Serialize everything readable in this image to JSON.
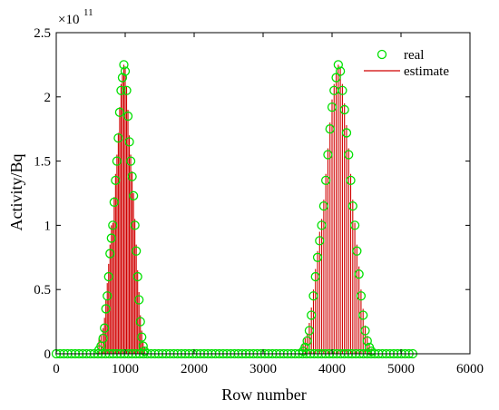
{
  "chart_data": {
    "type": "scatter",
    "title": "",
    "xlabel": "Row number",
    "ylabel": "Activity/Bq",
    "xlim": [
      0,
      6000
    ],
    "ylim": [
      0,
      2.5
    ],
    "y_exponent_base": "×10",
    "y_exponent_power": "11",
    "x_ticks": [
      0,
      1000,
      2000,
      3000,
      4000,
      5000,
      6000
    ],
    "y_ticks": [
      0,
      0.5,
      1,
      1.5,
      2,
      2.5
    ],
    "x_tick_labels": [
      "0",
      "1000",
      "2000",
      "3000",
      "4000",
      "5000",
      "6000"
    ],
    "y_tick_labels": [
      "0",
      "0.5",
      "1",
      "1.5",
      "2",
      "2.5"
    ],
    "grid": false,
    "legend_position": "top-right",
    "colors": {
      "real": "#00e000",
      "estimate": "#d00000",
      "axis": "#000000"
    },
    "series": [
      {
        "name": "real",
        "style": "circle-markers",
        "color": "#00e000",
        "x": [
          620,
          650,
          680,
          700,
          720,
          740,
          760,
          780,
          800,
          820,
          840,
          860,
          880,
          900,
          920,
          940,
          960,
          980,
          1000,
          1020,
          1040,
          1060,
          1080,
          1100,
          1120,
          1140,
          1160,
          1180,
          1200,
          1220,
          1240,
          1260,
          1280,
          3580,
          3610,
          3640,
          3670,
          3700,
          3730,
          3760,
          3790,
          3820,
          3850,
          3880,
          3910,
          3940,
          3970,
          4000,
          4030,
          4060,
          4090,
          4120,
          4150,
          4180,
          4210,
          4240,
          4270,
          4300,
          4330,
          4360,
          4390,
          4420,
          4450,
          4480,
          4510,
          4540,
          4570
        ],
        "y": [
          0.03,
          0.06,
          0.12,
          0.2,
          0.35,
          0.45,
          0.6,
          0.78,
          0.9,
          1.0,
          1.18,
          1.35,
          1.5,
          1.68,
          1.88,
          2.05,
          2.15,
          2.25,
          2.2,
          2.05,
          1.85,
          1.65,
          1.5,
          1.38,
          1.23,
          1.0,
          0.8,
          0.6,
          0.42,
          0.25,
          0.13,
          0.06,
          0.02,
          0.02,
          0.05,
          0.1,
          0.18,
          0.3,
          0.45,
          0.6,
          0.75,
          0.88,
          1.0,
          1.15,
          1.35,
          1.55,
          1.75,
          1.92,
          2.05,
          2.15,
          2.25,
          2.2,
          2.05,
          1.9,
          1.72,
          1.55,
          1.35,
          1.15,
          1.0,
          0.8,
          0.62,
          0.45,
          0.3,
          0.18,
          0.1,
          0.05,
          0.02
        ]
      },
      {
        "name": "estimate",
        "style": "stems",
        "color": "#d00000",
        "x": [
          620,
          650,
          680,
          700,
          720,
          740,
          760,
          780,
          800,
          820,
          840,
          860,
          880,
          900,
          920,
          940,
          960,
          980,
          1000,
          1020,
          1040,
          1060,
          1080,
          1100,
          1120,
          1140,
          1160,
          1180,
          1200,
          1220,
          1240,
          1260,
          1280,
          3580,
          3610,
          3640,
          3670,
          3700,
          3730,
          3760,
          3790,
          3820,
          3850,
          3880,
          3910,
          3940,
          3970,
          4000,
          4030,
          4060,
          4090,
          4120,
          4150,
          4180,
          4210,
          4240,
          4270,
          4300,
          4330,
          4360,
          4390,
          4420,
          4450,
          4480,
          4510,
          4540,
          4570
        ],
        "y": [
          0.12,
          0.15,
          0.2,
          0.28,
          0.42,
          0.55,
          0.7,
          0.85,
          1.0,
          1.02,
          1.22,
          1.4,
          1.55,
          1.72,
          1.92,
          2.1,
          2.18,
          2.25,
          2.22,
          2.08,
          1.9,
          1.7,
          1.55,
          1.42,
          1.25,
          1.05,
          0.85,
          0.65,
          0.48,
          0.3,
          0.18,
          0.1,
          0.05,
          0.08,
          0.12,
          0.16,
          0.24,
          0.36,
          0.5,
          0.66,
          0.8,
          0.95,
          1.05,
          1.2,
          1.4,
          1.6,
          1.8,
          1.98,
          2.1,
          2.18,
          2.25,
          2.22,
          2.1,
          1.95,
          1.78,
          1.6,
          1.4,
          1.2,
          1.02,
          0.85,
          0.68,
          0.5,
          0.35,
          0.22,
          0.14,
          0.08,
          0.04
        ]
      }
    ],
    "baseline_markers": {
      "x_start": 0,
      "x_end": 5200,
      "step": 55,
      "y": 0
    }
  }
}
